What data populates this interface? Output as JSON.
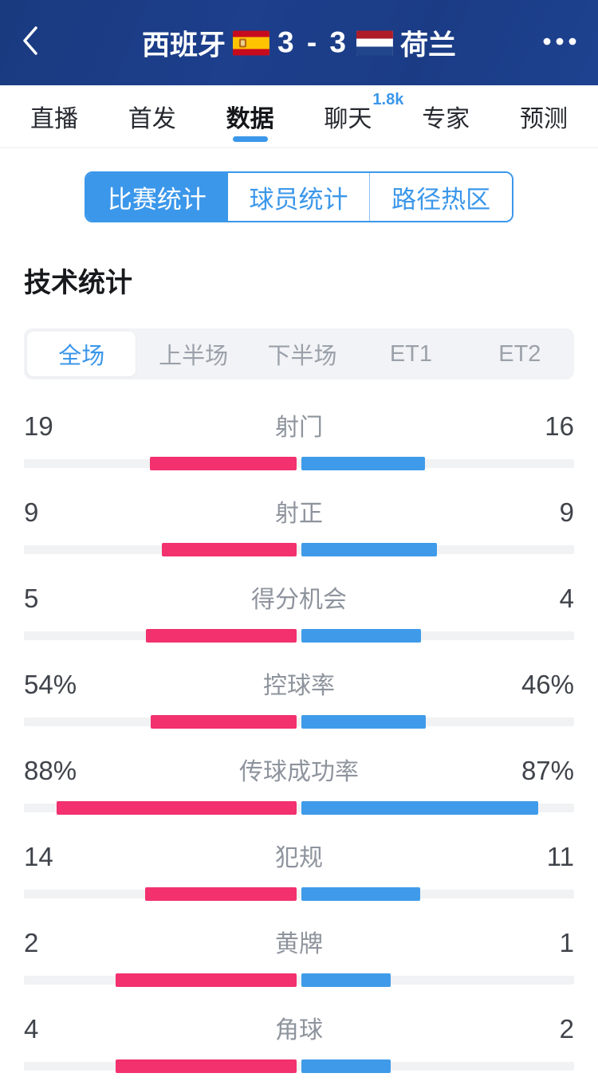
{
  "header": {
    "home_team": "西班牙",
    "away_team": "荷兰",
    "score": "3 - 3",
    "back_icon": "chevron-left",
    "more_icon": "ellipsis"
  },
  "nav_tabs": {
    "items": [
      {
        "label": "直播"
      },
      {
        "label": "首发"
      },
      {
        "label": "数据",
        "active": true
      },
      {
        "label": "聊天",
        "badge": "1.8k"
      },
      {
        "label": "专家"
      },
      {
        "label": "预测"
      }
    ]
  },
  "sub_tabs": {
    "items": [
      {
        "label": "比赛统计",
        "active": true
      },
      {
        "label": "球员统计"
      },
      {
        "label": "路径热区"
      }
    ]
  },
  "section_title": "技术统计",
  "period_tabs": {
    "items": [
      {
        "label": "全场",
        "active": true
      },
      {
        "label": "上半场"
      },
      {
        "label": "下半场"
      },
      {
        "label": "ET1"
      },
      {
        "label": "ET2"
      }
    ]
  },
  "stats": {
    "rows": [
      {
        "label": "射门",
        "home": "19",
        "away": "16"
      },
      {
        "label": "射正",
        "home": "9",
        "away": "9"
      },
      {
        "label": "得分机会",
        "home": "5",
        "away": "4"
      },
      {
        "label": "控球率",
        "home": "54%",
        "away": "46%"
      },
      {
        "label": "传球成功率",
        "home": "88%",
        "away": "87%"
      },
      {
        "label": "犯规",
        "home": "14",
        "away": "11"
      },
      {
        "label": "黄牌",
        "home": "2",
        "away": "1"
      },
      {
        "label": "角球",
        "home": "4",
        "away": "2"
      }
    ]
  },
  "colors": {
    "home_bar": "#F2316E",
    "away_bar": "#3F9BE9",
    "accent": "#3B97EA",
    "header_bg": "#1C3D87"
  }
}
